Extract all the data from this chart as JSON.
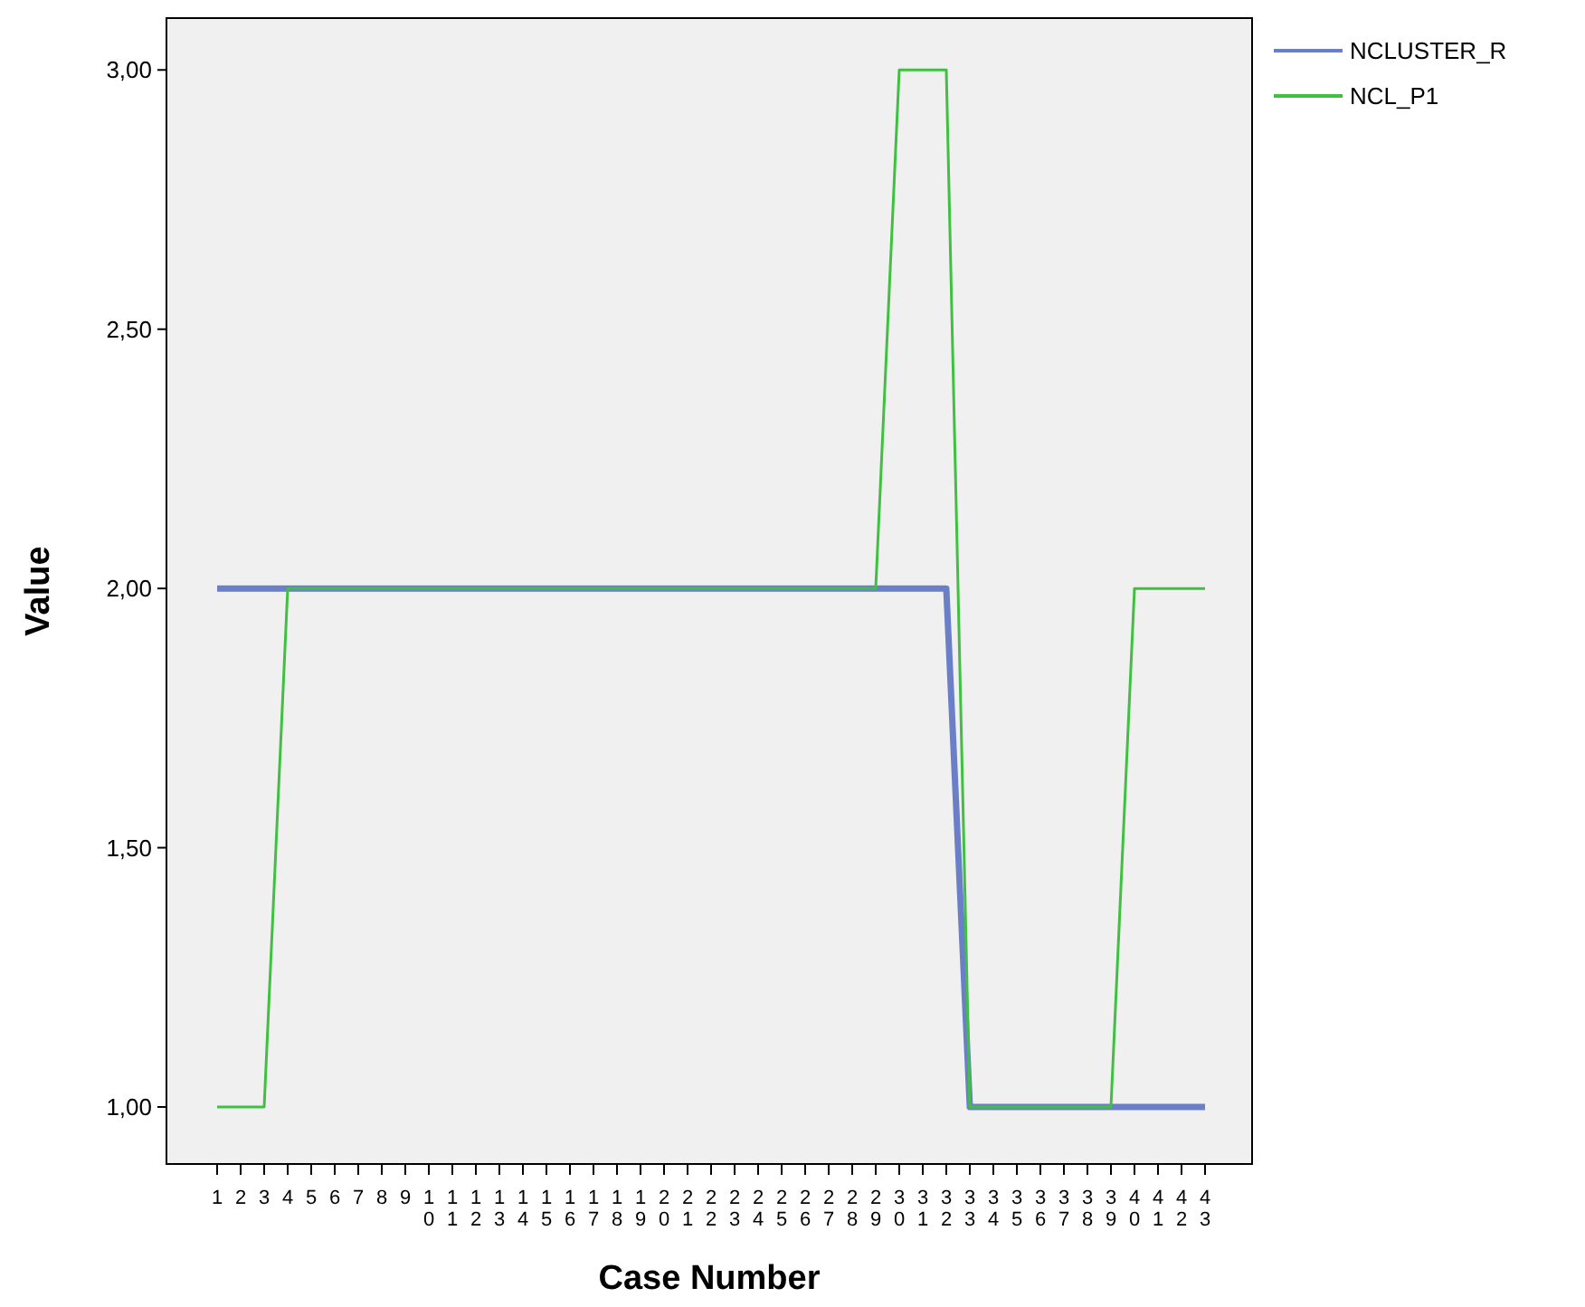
{
  "chart_data": {
    "type": "line",
    "xlabel": "Case Number",
    "ylabel": "Value",
    "categories": [
      "1",
      "2",
      "3",
      "4",
      "5",
      "6",
      "7",
      "8",
      "9",
      "10",
      "11",
      "12",
      "13",
      "14",
      "15",
      "16",
      "17",
      "18",
      "19",
      "20",
      "21",
      "22",
      "23",
      "24",
      "25",
      "26",
      "27",
      "28",
      "29",
      "30",
      "31",
      "32",
      "33",
      "34",
      "35",
      "36",
      "37",
      "38",
      "39",
      "40",
      "41",
      "42",
      "43"
    ],
    "ylim": [
      0.89,
      3.1
    ],
    "yticks": [
      {
        "value": 1,
        "label": "1,00"
      },
      {
        "value": 1.5,
        "label": "1,50"
      },
      {
        "value": 2,
        "label": "2,00"
      },
      {
        "value": 2.5,
        "label": "2,50"
      },
      {
        "value": 3,
        "label": "3,00"
      }
    ],
    "series": [
      {
        "name": "NCLUSTER_R",
        "color": "#6a7fc8",
        "values": [
          2,
          2,
          2,
          2,
          2,
          2,
          2,
          2,
          2,
          2,
          2,
          2,
          2,
          2,
          2,
          2,
          2,
          2,
          2,
          2,
          2,
          2,
          2,
          2,
          2,
          2,
          2,
          2,
          2,
          2,
          2,
          2,
          1,
          1,
          1,
          1,
          1,
          1,
          1,
          1,
          1,
          1,
          1
        ]
      },
      {
        "name": "NCL_P1",
        "color": "#40c040",
        "values": [
          1,
          1,
          1,
          2,
          2,
          2,
          2,
          2,
          2,
          2,
          2,
          2,
          2,
          2,
          2,
          2,
          2,
          2,
          2,
          2,
          2,
          2,
          2,
          2,
          2,
          2,
          2,
          2,
          2,
          3,
          3,
          3,
          1,
          1,
          1,
          1,
          1,
          1,
          1,
          2,
          2,
          2,
          2
        ]
      }
    ],
    "legend": "top right",
    "grid": false,
    "marker": "none",
    "line_style": "solid"
  }
}
